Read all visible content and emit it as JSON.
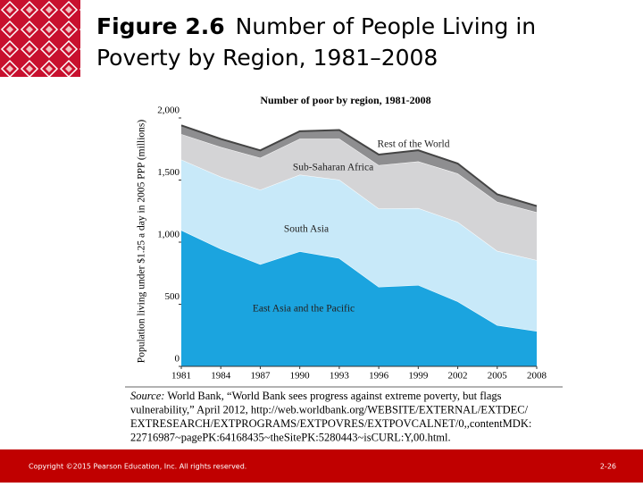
{
  "header": {
    "title_bold": "Figure 2.6",
    "title_rest": "Number of People Living in",
    "title_line2": "Poverty by Region, 1981–2008"
  },
  "chart_data": {
    "type": "stacked_area",
    "title": "Number of poor by region, 1981-2008",
    "y_label": "Population living under $1.25 a day in 2005 PPP (millions)",
    "x": [
      1981,
      1984,
      1987,
      1990,
      1993,
      1996,
      1999,
      2002,
      2005,
      2008
    ],
    "xlim": [
      1981,
      2008
    ],
    "xticks": [
      1981,
      1984,
      1987,
      1990,
      1993,
      1996,
      1999,
      2002,
      2005,
      2008
    ],
    "ylim": [
      0,
      2000
    ],
    "yticks": [
      0,
      500,
      {
        "value": 1000,
        "label": "1,000"
      },
      {
        "value": 1500,
        "label": "1,500"
      },
      {
        "value": 2000,
        "label": "2,000"
      }
    ],
    "series": [
      {
        "name": "East Asia and the Pacific",
        "color": "#1ba4df",
        "values": [
          1097,
          947,
          822,
          926,
          871,
          640,
          655,
          523,
          332,
          284
        ]
      },
      {
        "name": "South Asia",
        "color": "#c8e9f9",
        "values": [
          568,
          580,
          600,
          617,
          632,
          631,
          619,
          640,
          598,
          571
        ]
      },
      {
        "name": "Sub-Saharan Africa",
        "color": "#d4d4d6",
        "values": [
          205,
          239,
          257,
          290,
          330,
          349,
          376,
          390,
          395,
          386
        ]
      },
      {
        "name": "Rest of the World",
        "color": "#8e8e90",
        "values": [
          70,
          65,
          60,
          60,
          70,
          85,
          90,
          80,
          60,
          50
        ]
      }
    ]
  },
  "source": {
    "label": "Source:",
    "lines": [
      "World Bank, “World Bank sees progress against extreme poverty, but flags",
      "vulnerability,” April 2012, http://web.worldbank.org/WEBSITE/EXTERNAL/EXTDEC/",
      "EXTRESEARCH/EXTPROGRAMS/EXTPOVRES/EXTPOVCALNET/0,,contentMDK:",
      "22716987~pagePK:64168435~theSitePK:5280443~isCURL:Y,00.html."
    ]
  },
  "footer": {
    "copyright": "Copyright ©2015 Pearson Education, Inc. All rights reserved.",
    "page": "2-26"
  }
}
